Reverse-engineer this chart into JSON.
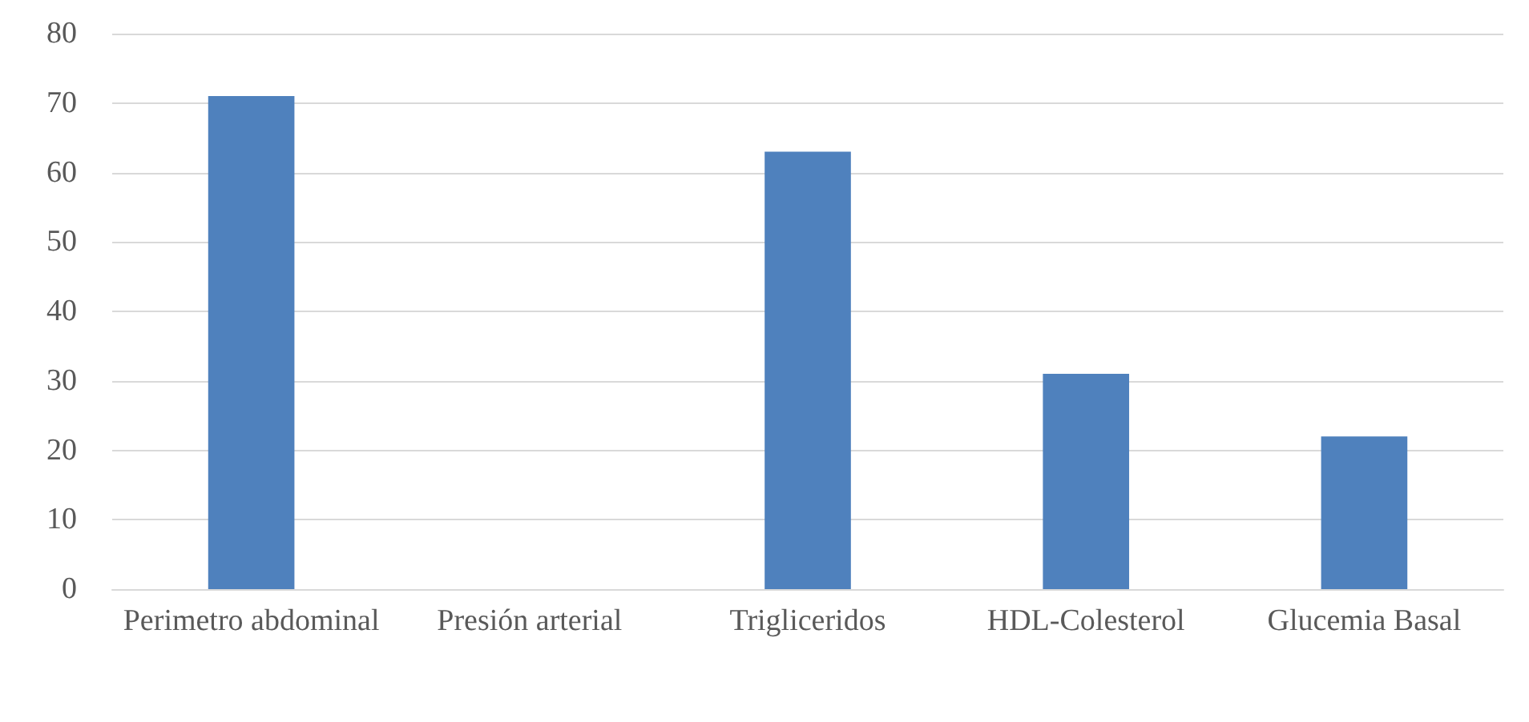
{
  "chart_data": {
    "type": "bar",
    "categories": [
      "Perimetro abdominal",
      "Presión arterial",
      "Trigliceridos",
      "HDL-Colesterol",
      "Glucemia Basal"
    ],
    "values": [
      71,
      0,
      63,
      31,
      22
    ],
    "color": "#4f81bd",
    "ylim": [
      0,
      80
    ],
    "yticks": [
      0,
      10,
      20,
      30,
      40,
      50,
      60,
      70,
      80
    ],
    "grid": "y"
  }
}
